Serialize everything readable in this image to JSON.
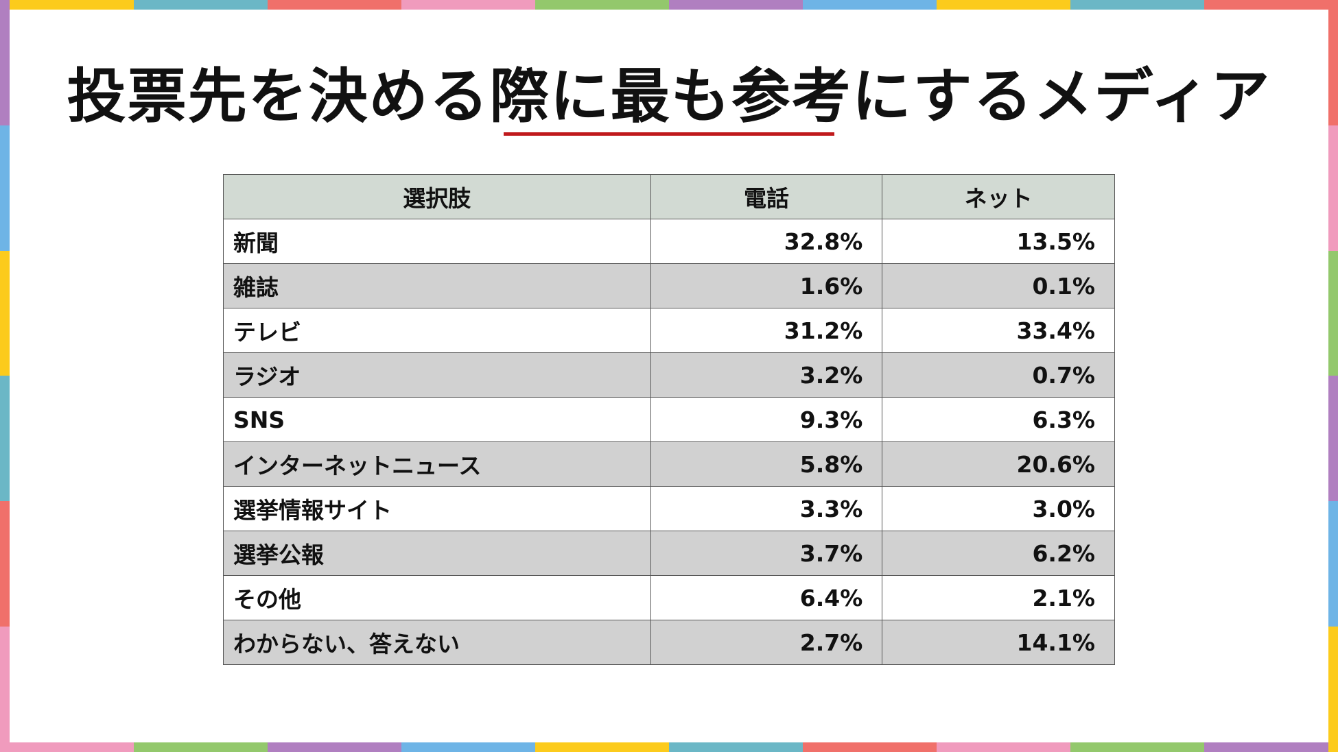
{
  "title": "投票先を決める際に最も参考にするメディア",
  "accent_color": "#c0191c",
  "header_color": "#d2dad3",
  "border_colors": [
    "#fccb1c",
    "#6bb7c6",
    "#f0706a",
    "#f09bbd",
    "#93c86c",
    "#b07fc0",
    "#6eb4e6"
  ],
  "table": {
    "headers": [
      "選択肢",
      "電話",
      "ネット"
    ],
    "rows": [
      {
        "label": "新聞",
        "phone": "32.8%",
        "net": "13.5%"
      },
      {
        "label": "雑誌",
        "phone": "1.6%",
        "net": "0.1%"
      },
      {
        "label": "テレビ",
        "phone": "31.2%",
        "net": "33.4%"
      },
      {
        "label": "ラジオ",
        "phone": "3.2%",
        "net": "0.7%"
      },
      {
        "label": "SNS",
        "phone": "9.3%",
        "net": "6.3%"
      },
      {
        "label": "インターネットニュース",
        "phone": "5.8%",
        "net": "20.6%"
      },
      {
        "label": "選挙情報サイト",
        "phone": "3.3%",
        "net": "3.0%"
      },
      {
        "label": "選挙公報",
        "phone": "3.7%",
        "net": "6.2%"
      },
      {
        "label": "その他",
        "phone": "6.4%",
        "net": "2.1%"
      },
      {
        "label": "わからない、答えない",
        "phone": "2.7%",
        "net": "14.1%"
      }
    ]
  }
}
